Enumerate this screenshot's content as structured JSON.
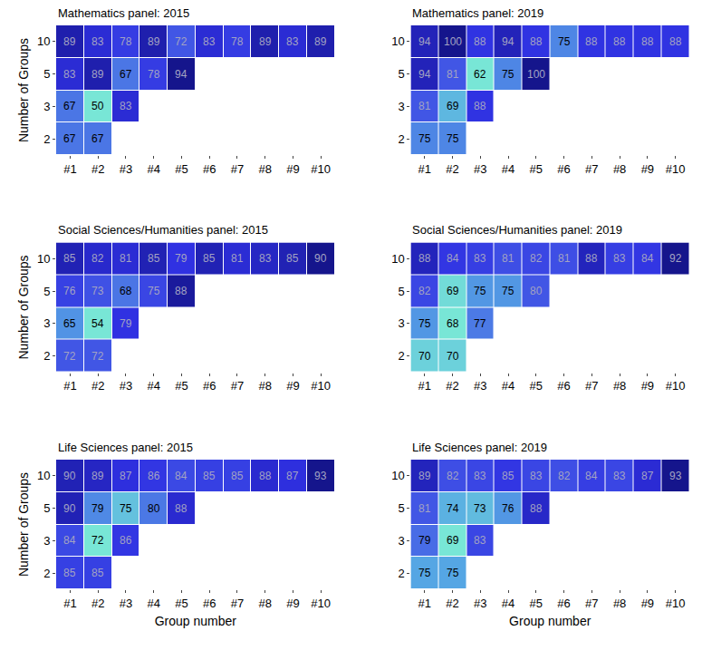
{
  "chart_data": [
    {
      "type": "heatmap",
      "title": "Mathematics panel: 2015",
      "ylabel": "Number of Groups",
      "data_labels": true,
      "x": [
        "#1",
        "#2",
        "#3",
        "#4",
        "#5",
        "#6",
        "#7",
        "#8",
        "#9",
        "#10"
      ],
      "y": [
        "2",
        "3",
        "5",
        "10"
      ],
      "cells": [
        [
          67,
          67,
          null,
          null,
          null,
          null,
          null,
          null,
          null,
          null
        ],
        [
          67,
          50,
          83,
          null,
          null,
          null,
          null,
          null,
          null,
          null
        ],
        [
          83,
          89,
          67,
          78,
          94,
          null,
          null,
          null,
          null,
          null
        ],
        [
          89,
          83,
          78,
          89,
          72,
          83,
          78,
          89,
          83,
          89
        ]
      ]
    },
    {
      "type": "heatmap",
      "title": "Mathematics panel: 2019",
      "data_labels": true,
      "x": [
        "#1",
        "#2",
        "#3",
        "#4",
        "#5",
        "#6",
        "#7",
        "#8",
        "#9",
        "#10"
      ],
      "y": [
        "2",
        "3",
        "5",
        "10"
      ],
      "cells": [
        [
          75,
          75,
          null,
          null,
          null,
          null,
          null,
          null,
          null,
          null
        ],
        [
          81,
          69,
          88,
          null,
          null,
          null,
          null,
          null,
          null,
          null
        ],
        [
          94,
          81,
          62,
          75,
          100,
          null,
          null,
          null,
          null,
          null
        ],
        [
          94,
          100,
          88,
          94,
          88,
          75,
          88,
          88,
          88,
          88
        ]
      ]
    },
    {
      "type": "heatmap",
      "title": "Social Sciences/Humanities panel: 2015",
      "ylabel": "Number of Groups",
      "data_labels": true,
      "x": [
        "#1",
        "#2",
        "#3",
        "#4",
        "#5",
        "#6",
        "#7",
        "#8",
        "#9",
        "#10"
      ],
      "y": [
        "2",
        "3",
        "5",
        "10"
      ],
      "cells": [
        [
          72,
          72,
          null,
          null,
          null,
          null,
          null,
          null,
          null,
          null
        ],
        [
          65,
          54,
          79,
          null,
          null,
          null,
          null,
          null,
          null,
          null
        ],
        [
          76,
          73,
          68,
          75,
          88,
          null,
          null,
          null,
          null,
          null
        ],
        [
          85,
          82,
          81,
          85,
          79,
          85,
          81,
          83,
          85,
          90
        ]
      ]
    },
    {
      "type": "heatmap",
      "title": "Social Sciences/Humanities panel: 2019",
      "data_labels": true,
      "x": [
        "#1",
        "#2",
        "#3",
        "#4",
        "#5",
        "#6",
        "#7",
        "#8",
        "#9",
        "#10"
      ],
      "y": [
        "2",
        "3",
        "5",
        "10"
      ],
      "cells": [
        [
          70,
          70,
          null,
          null,
          null,
          null,
          null,
          null,
          null,
          null
        ],
        [
          75,
          68,
          77,
          null,
          null,
          null,
          null,
          null,
          null,
          null
        ],
        [
          82,
          69,
          75,
          75,
          80,
          null,
          null,
          null,
          null,
          null
        ],
        [
          88,
          84,
          83,
          81,
          82,
          81,
          88,
          83,
          84,
          92
        ]
      ]
    },
    {
      "type": "heatmap",
      "title": "Life Sciences panel: 2015",
      "ylabel": "Number of Groups",
      "xlabel": "Group number",
      "data_labels": true,
      "x": [
        "#1",
        "#2",
        "#3",
        "#4",
        "#5",
        "#6",
        "#7",
        "#8",
        "#9",
        "#10"
      ],
      "y": [
        "2",
        "3",
        "5",
        "10"
      ],
      "cells": [
        [
          85,
          85,
          null,
          null,
          null,
          null,
          null,
          null,
          null,
          null
        ],
        [
          84,
          72,
          86,
          null,
          null,
          null,
          null,
          null,
          null,
          null
        ],
        [
          90,
          79,
          75,
          80,
          88,
          null,
          null,
          null,
          null,
          null
        ],
        [
          90,
          89,
          87,
          86,
          84,
          85,
          85,
          88,
          87,
          93
        ]
      ]
    },
    {
      "type": "heatmap",
      "title": "Life Sciences panel: 2019",
      "xlabel": "Group number",
      "data_labels": true,
      "x": [
        "#1",
        "#2",
        "#3",
        "#4",
        "#5",
        "#6",
        "#7",
        "#8",
        "#9",
        "#10"
      ],
      "y": [
        "2",
        "3",
        "5",
        "10"
      ],
      "cells": [
        [
          75,
          75,
          null,
          null,
          null,
          null,
          null,
          null,
          null,
          null
        ],
        [
          79,
          69,
          83,
          null,
          null,
          null,
          null,
          null,
          null,
          null
        ],
        [
          81,
          74,
          73,
          76,
          88,
          null,
          null,
          null,
          null,
          null
        ],
        [
          89,
          82,
          83,
          85,
          83,
          82,
          84,
          83,
          87,
          93
        ]
      ]
    }
  ]
}
